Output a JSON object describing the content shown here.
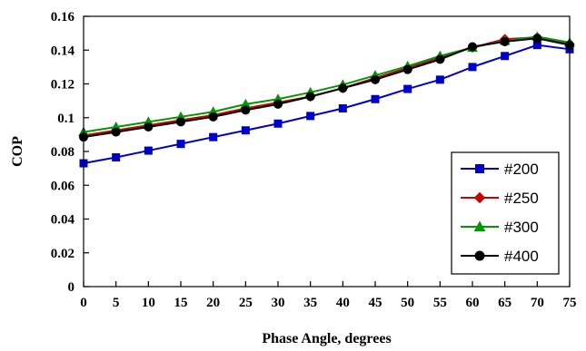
{
  "chart_data": {
    "type": "line",
    "xlabel": "Phase Angle, degrees",
    "ylabel": "COP",
    "xlim": [
      0,
      75
    ],
    "ylim": [
      0,
      0.16
    ],
    "x_ticks": [
      "0",
      "5",
      "10",
      "15",
      "20",
      "25",
      "30",
      "35",
      "40",
      "45",
      "50",
      "55",
      "60",
      "65",
      "70",
      "75"
    ],
    "y_ticks": [
      "0",
      "0.02",
      "0.04",
      "0.06",
      "0.08",
      "0.1",
      "0.12",
      "0.14",
      "0.16"
    ],
    "grid": false,
    "legend_position": "bottom-right",
    "x": [
      0,
      5,
      10,
      15,
      20,
      25,
      30,
      35,
      40,
      45,
      50,
      55,
      60,
      65,
      70,
      75
    ],
    "series": [
      {
        "name": "#200",
        "color": "#0000cc",
        "marker": "square",
        "values": [
          0.073,
          0.0765,
          0.0805,
          0.0845,
          0.0885,
          0.0925,
          0.0965,
          0.101,
          0.1055,
          0.111,
          0.117,
          0.1225,
          0.13,
          0.1365,
          0.143,
          0.1405
        ]
      },
      {
        "name": "#250",
        "color": "#cc0000",
        "marker": "diamond",
        "values": [
          0.0895,
          0.0925,
          0.0955,
          0.0985,
          0.1015,
          0.1055,
          0.109,
          0.1125,
          0.1175,
          0.1235,
          0.1295,
          0.1355,
          0.1415,
          0.1465,
          0.1475,
          0.1435
        ]
      },
      {
        "name": "#300",
        "color": "#009900",
        "marker": "triangle",
        "values": [
          0.0915,
          0.0945,
          0.0975,
          0.1005,
          0.1035,
          0.108,
          0.111,
          0.115,
          0.1195,
          0.125,
          0.1305,
          0.1365,
          0.1415,
          0.1455,
          0.148,
          0.1445
        ]
      },
      {
        "name": "#400",
        "color": "#000000",
        "marker": "circle",
        "values": [
          0.0885,
          0.0915,
          0.0945,
          0.0975,
          0.1005,
          0.1045,
          0.108,
          0.1125,
          0.1175,
          0.1225,
          0.1285,
          0.1345,
          0.142,
          0.145,
          0.147,
          0.143
        ]
      }
    ]
  }
}
